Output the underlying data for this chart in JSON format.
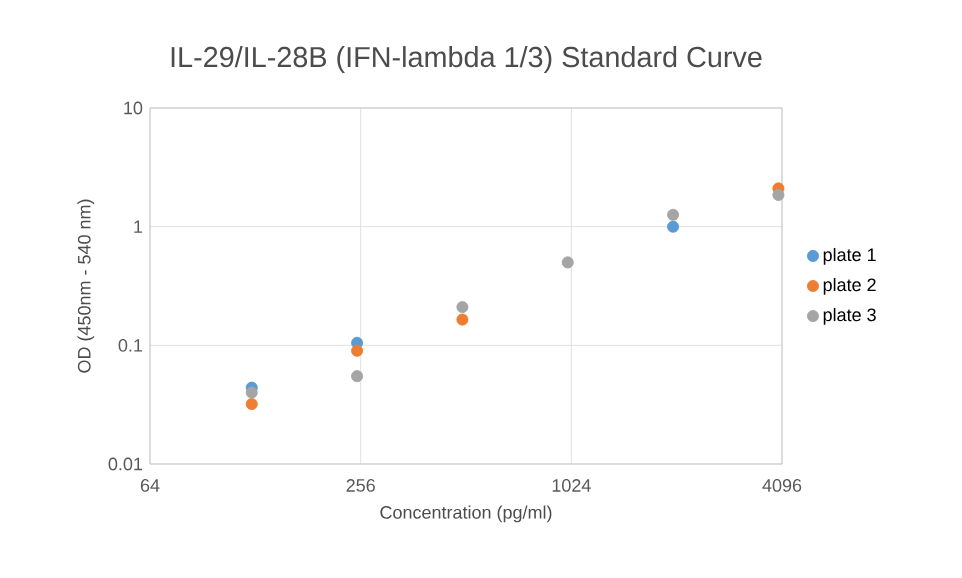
{
  "chart_data": {
    "type": "scatter",
    "title": "IL-29/IL-28B (IFN-lambda 1/3) Standard Curve",
    "xlabel": "Concentration (pg/ml)",
    "ylabel": "OD (450nm - 540 nm)",
    "log": "xy",
    "x": [
      125,
      250,
      500,
      1000,
      2000,
      4000
    ],
    "xlim": [
      64,
      4096
    ],
    "xticks": [
      64,
      256,
      1024,
      4096
    ],
    "ylim": [
      0.01,
      10
    ],
    "yticks": [
      0.01,
      0.1,
      1,
      10
    ],
    "grid": true,
    "legend": "right",
    "marker": "circle",
    "series": [
      {
        "name": "plate 1",
        "color": "#5b9bd5",
        "values": [
          0.044,
          0.105,
          null,
          null,
          1.0,
          null
        ]
      },
      {
        "name": "plate 2",
        "color": "#ed7d31",
        "values": [
          0.032,
          0.09,
          0.165,
          null,
          null,
          2.1
        ]
      },
      {
        "name": "plate 3",
        "color": "#a5a5a5",
        "values": [
          0.04,
          0.055,
          0.21,
          0.5,
          1.26,
          1.85
        ]
      }
    ]
  }
}
